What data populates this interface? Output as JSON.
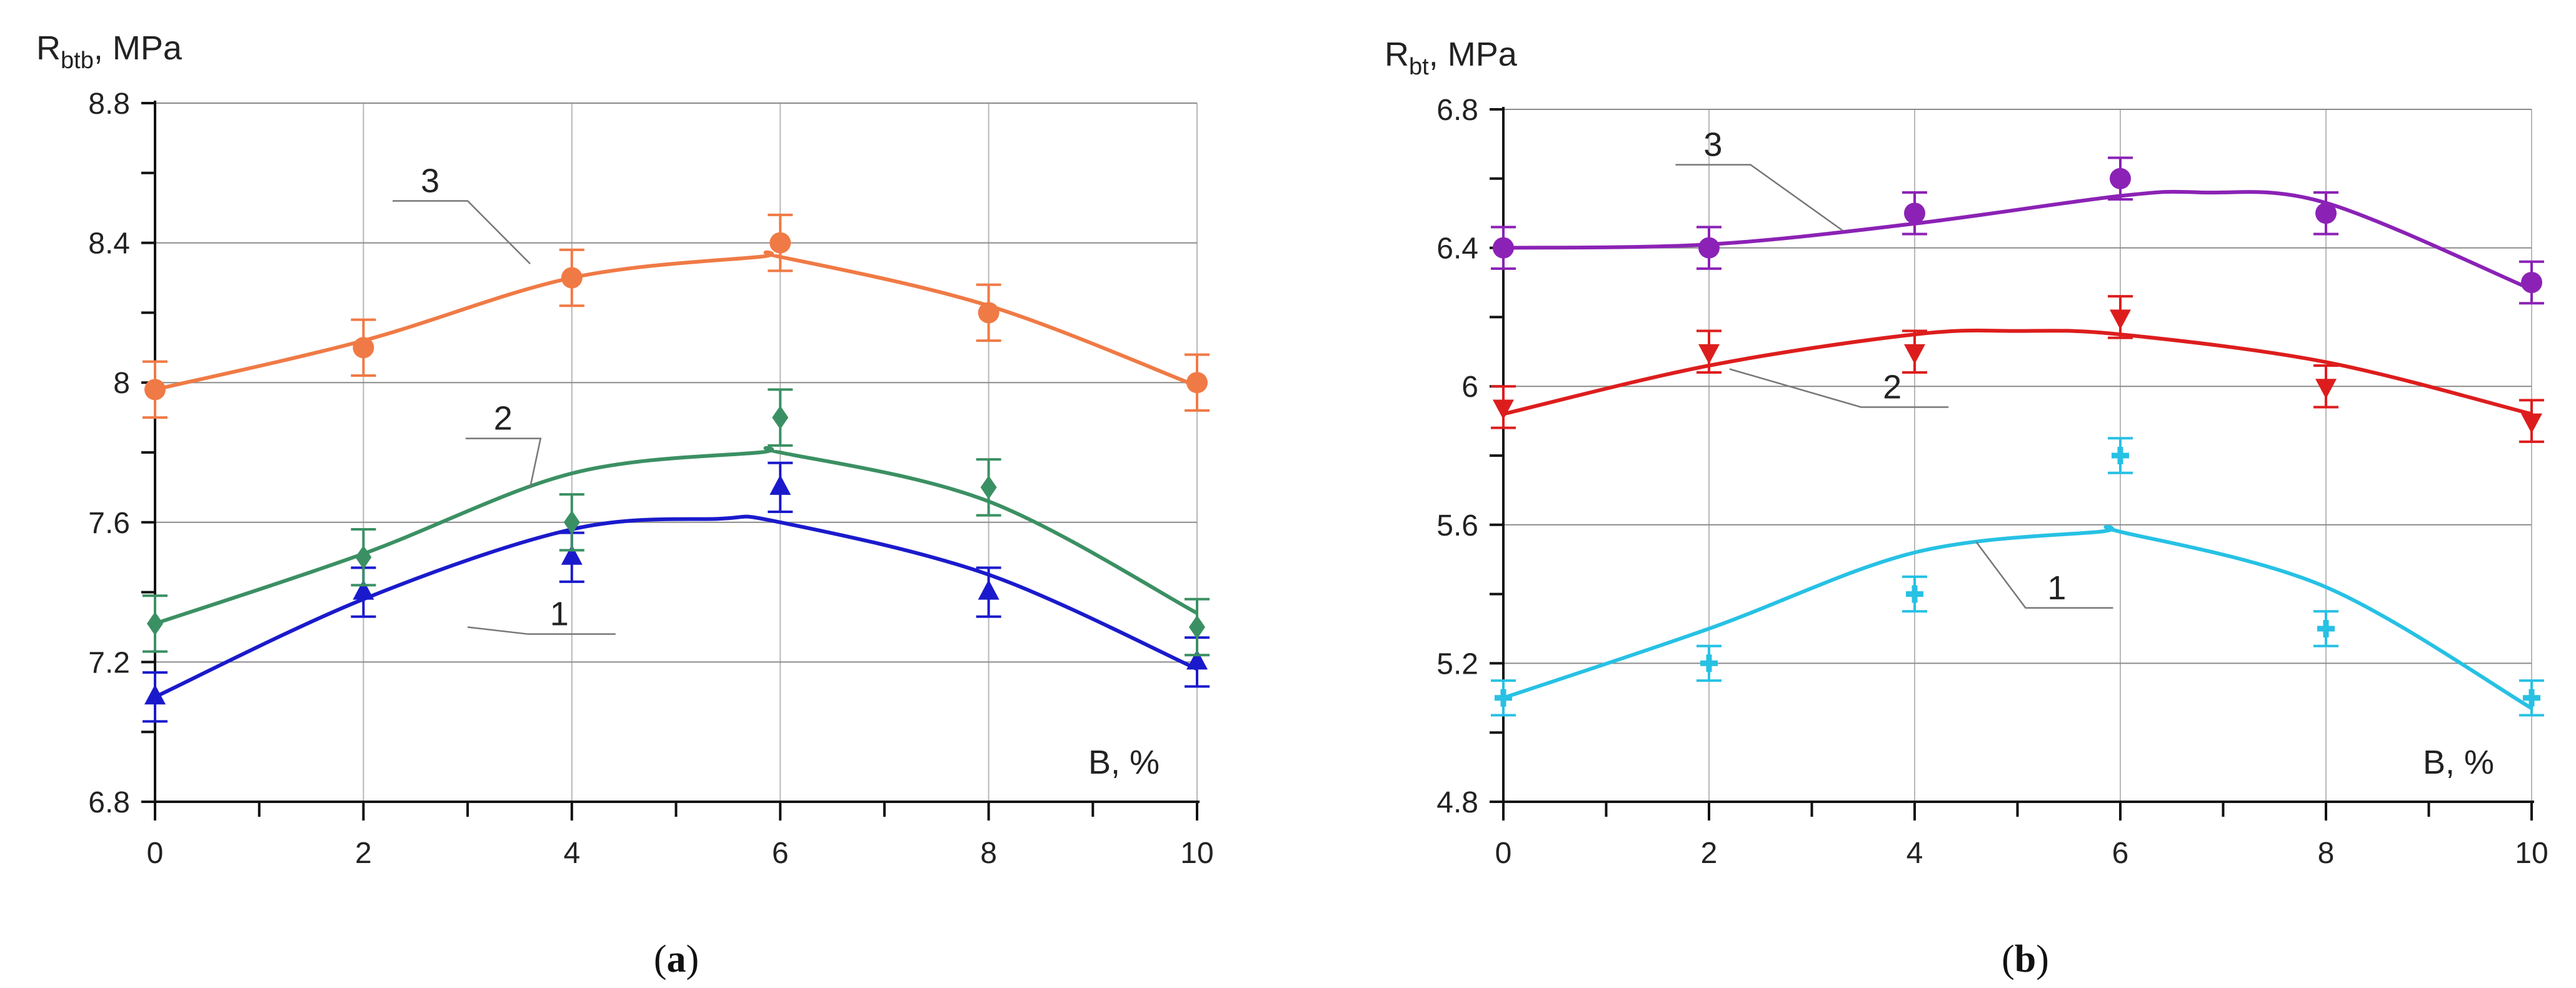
{
  "chart_data": [
    {
      "type": "line",
      "panel_label_prefix": "(",
      "panel_label_letter": "a",
      "panel_label_suffix": ")",
      "ylabel_main": "R",
      "ylabel_sub": "btb",
      "ylabel_unit": ", MPa",
      "xlabel": "B, %",
      "xlim": [
        0,
        10
      ],
      "ylim": [
        6.8,
        8.8
      ],
      "xticks": [
        0,
        2,
        4,
        6,
        8,
        10
      ],
      "xtick_labels": [
        "0",
        "2",
        "4",
        "6",
        "8",
        "10"
      ],
      "yticks": [
        6.8,
        7.2,
        7.6,
        8.0,
        8.4,
        8.8
      ],
      "ytick_labels": [
        "6.8",
        "7.2",
        "7.6",
        "8",
        "8.4",
        "8.8"
      ],
      "grid": true,
      "series": [
        {
          "name": "1",
          "color": "#1a1acc",
          "marker": "triangle-up",
          "x": [
            0,
            2,
            4,
            6,
            8,
            10
          ],
          "values": [
            7.1,
            7.4,
            7.5,
            7.7,
            7.4,
            7.2
          ],
          "error": [
            0.07,
            0.07,
            0.07,
            0.07,
            0.07,
            0.07
          ],
          "fit": {
            "x": [
              0,
              2,
              4,
              5.4,
              6,
              8,
              10
            ],
            "y": [
              7.1,
              7.38,
              7.58,
              7.61,
              7.6,
              7.45,
              7.18
            ]
          },
          "label_anchor": {
            "x": 3.0,
            "y": 7.3
          },
          "label_text_pos": {
            "x": 3.7,
            "y": 7.28
          }
        },
        {
          "name": "2",
          "color": "#3b9063",
          "marker": "diamond",
          "x": [
            0,
            2,
            4,
            6,
            8,
            10
          ],
          "values": [
            7.31,
            7.5,
            7.6,
            7.9,
            7.7,
            7.3
          ],
          "error": [
            0.08,
            0.08,
            0.08,
            0.08,
            0.08,
            0.08
          ],
          "fit": {
            "x": [
              0,
              2,
              4,
              5.8,
              6,
              8,
              10
            ],
            "y": [
              7.31,
              7.51,
              7.74,
              7.8,
              7.8,
              7.66,
              7.34
            ]
          },
          "label_anchor": {
            "x": 3.6,
            "y": 7.7
          },
          "label_text_pos": {
            "x": 3.4,
            "y": 7.84
          }
        },
        {
          "name": "3",
          "color": "#f07a45",
          "marker": "circle",
          "x": [
            0,
            2,
            4,
            6,
            8,
            10
          ],
          "values": [
            7.98,
            8.1,
            8.3,
            8.4,
            8.2,
            8.0
          ],
          "error": [
            0.08,
            0.08,
            0.08,
            0.08,
            0.08,
            0.08
          ],
          "fit": {
            "x": [
              0,
              2,
              4,
              5.8,
              6,
              8,
              10
            ],
            "y": [
              7.98,
              8.12,
              8.3,
              8.36,
              8.36,
              8.22,
              7.99
            ]
          },
          "label_anchor": {
            "x": 3.6,
            "y": 8.34
          },
          "label_text_pos": {
            "x": 2.7,
            "y": 8.52
          }
        }
      ]
    },
    {
      "type": "line",
      "panel_label_prefix": "(",
      "panel_label_letter": "b",
      "panel_label_suffix": ")",
      "ylabel_main": "R",
      "ylabel_sub": "bt",
      "ylabel_unit": ", MPa",
      "xlabel": "B, %",
      "xlim": [
        0,
        10
      ],
      "ylim": [
        4.8,
        6.8
      ],
      "xticks": [
        0,
        2,
        4,
        6,
        8,
        10
      ],
      "xtick_labels": [
        "0",
        "2",
        "4",
        "6",
        "8",
        "10"
      ],
      "yticks": [
        4.8,
        5.2,
        5.6,
        6.0,
        6.4,
        6.8
      ],
      "ytick_labels": [
        "4.8",
        "5.2",
        "5.6",
        "6",
        "6.4",
        "6.8"
      ],
      "grid": true,
      "series": [
        {
          "name": "1",
          "color": "#27c1e4",
          "marker": "cross",
          "x": [
            0,
            2,
            4,
            6,
            8,
            10
          ],
          "values": [
            5.1,
            5.2,
            5.4,
            5.8,
            5.3,
            5.1
          ],
          "error": [
            0.05,
            0.05,
            0.05,
            0.05,
            0.05,
            0.05
          ],
          "fit": {
            "x": [
              0,
              2,
              4,
              5.8,
              6,
              8,
              10
            ],
            "y": [
              5.1,
              5.3,
              5.52,
              5.58,
              5.58,
              5.42,
              5.07
            ]
          },
          "label_anchor": {
            "x": 4.6,
            "y": 5.55
          },
          "label_text_pos": {
            "x": 5.2,
            "y": 5.36
          }
        },
        {
          "name": "2",
          "color": "#dd1d1d",
          "marker": "triangle-down",
          "x": [
            0,
            2,
            4,
            6,
            8,
            10
          ],
          "values": [
            5.94,
            6.1,
            6.1,
            6.2,
            6.0,
            5.9
          ],
          "error": [
            0.06,
            0.06,
            0.06,
            0.06,
            0.06,
            0.06
          ],
          "fit": {
            "x": [
              0,
              2,
              4,
              5.0,
              6,
              8,
              10
            ],
            "y": [
              5.92,
              6.06,
              6.15,
              6.16,
              6.15,
              6.07,
              5.92
            ]
          },
          "label_anchor": {
            "x": 2.2,
            "y": 6.05
          },
          "label_text_pos": {
            "x": 3.6,
            "y": 5.94
          }
        },
        {
          "name": "3",
          "color": "#8b22b5",
          "marker": "circle",
          "x": [
            0,
            2,
            4,
            6,
            8,
            10
          ],
          "values": [
            6.4,
            6.4,
            6.5,
            6.6,
            6.5,
            6.3
          ],
          "error": [
            0.06,
            0.06,
            0.06,
            0.06,
            0.06,
            0.06
          ],
          "fit": {
            "x": [
              0,
              2,
              4,
              6,
              6.8,
              8,
              10
            ],
            "y": [
              6.4,
              6.41,
              6.47,
              6.55,
              6.56,
              6.53,
              6.28
            ]
          },
          "label_anchor": {
            "x": 3.3,
            "y": 6.45
          },
          "label_text_pos": {
            "x": 2.1,
            "y": 6.64
          }
        }
      ]
    }
  ]
}
